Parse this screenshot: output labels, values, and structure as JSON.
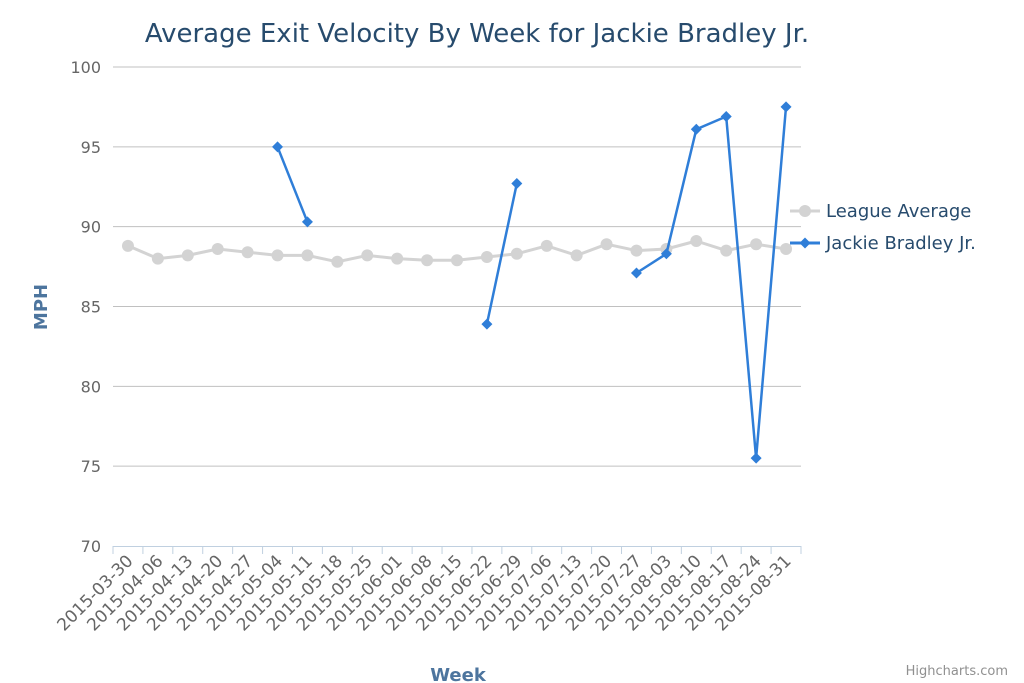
{
  "chart_data": {
    "type": "line",
    "title": "Average Exit Velocity By Week for Jackie Bradley Jr.",
    "xlabel": "Week",
    "ylabel": "MPH",
    "ylim": [
      70,
      100
    ],
    "yticks": [
      70,
      75,
      80,
      85,
      90,
      95,
      100
    ],
    "categories": [
      "2015-03-30",
      "2015-04-06",
      "2015-04-13",
      "2015-04-20",
      "2015-04-27",
      "2015-05-04",
      "2015-05-11",
      "2015-05-18",
      "2015-05-25",
      "2015-06-01",
      "2015-06-08",
      "2015-06-15",
      "2015-06-22",
      "2015-06-29",
      "2015-07-06",
      "2015-07-13",
      "2015-07-20",
      "2015-07-27",
      "2015-08-03",
      "2015-08-10",
      "2015-08-17",
      "2015-08-24",
      "2015-08-31"
    ],
    "series": [
      {
        "name": "League Average",
        "color": "#d3d3d3",
        "marker": "circle",
        "values": [
          88.8,
          88.0,
          88.2,
          88.6,
          88.4,
          88.2,
          88.2,
          87.8,
          88.2,
          88.0,
          87.9,
          87.9,
          88.1,
          88.3,
          88.8,
          88.2,
          88.9,
          88.5,
          88.6,
          89.1,
          88.5,
          88.9,
          88.6
        ]
      },
      {
        "name": "Jackie Bradley Jr.",
        "color": "#2f7ed8",
        "marker": "diamond",
        "values": [
          null,
          null,
          null,
          null,
          null,
          95.0,
          90.3,
          null,
          null,
          null,
          null,
          null,
          83.9,
          92.7,
          null,
          null,
          null,
          87.1,
          88.3,
          96.1,
          96.9,
          75.5,
          97.5
        ]
      }
    ],
    "legend": "right",
    "grid": true
  },
  "credit": "Highcharts.com"
}
